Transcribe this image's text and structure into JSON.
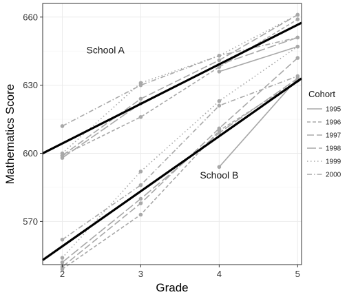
{
  "chart_data": {
    "type": "line",
    "xlabel": "Grade",
    "ylabel": "Mathematics Score",
    "x_ticks": [
      2,
      3,
      4,
      5
    ],
    "y_ticks": [
      570,
      600,
      630,
      660
    ],
    "xlim": [
      1.75,
      5.05
    ],
    "ylim": [
      551,
      666
    ],
    "grid": true,
    "legend": {
      "title": "Cohort",
      "placement": "right"
    },
    "annotations": [
      {
        "text": "School A",
        "x": 2.55,
        "y": 644
      },
      {
        "text": "School B",
        "x": 4.0,
        "y": 589
      }
    ],
    "series_color": "#a8a8a8",
    "trend_color": "#000000",
    "series": [
      {
        "name": "1995",
        "dash": "solid",
        "school": "A",
        "x": [
          4,
          5
        ],
        "y": [
          636,
          647
        ]
      },
      {
        "name": "1996",
        "dash": "dash",
        "school": "A",
        "x": [
          2,
          3,
          4,
          5
        ],
        "y": [
          599,
          616,
          638,
          659
        ]
      },
      {
        "name": "1997",
        "dash": "longdash",
        "school": "A",
        "x": [
          2,
          3,
          4,
          5
        ],
        "y": [
          599,
          624,
          641,
          661
        ]
      },
      {
        "name": "1998",
        "dash": "longdash2",
        "school": "A",
        "x": [
          2,
          3,
          4,
          5
        ],
        "y": [
          598,
          622,
          639,
          651
        ]
      },
      {
        "name": "1999",
        "dash": "dotted",
        "school": "A",
        "x": [
          2,
          3,
          4,
          5
        ],
        "y": [
          600,
          631,
          643,
          661
        ]
      },
      {
        "name": "2000",
        "dash": "dotdash",
        "school": "A",
        "x": [
          2,
          3,
          4,
          5
        ],
        "y": [
          612,
          630,
          643,
          651
        ]
      },
      {
        "name": "1995",
        "dash": "solid",
        "school": "B",
        "x": [
          4,
          5
        ],
        "y": [
          594,
          633
        ]
      },
      {
        "name": "1996",
        "dash": "dash",
        "school": "B",
        "x": [
          2,
          3,
          4,
          5
        ],
        "y": [
          549,
          573,
          610,
          632
        ]
      },
      {
        "name": "1997",
        "dash": "longdash",
        "school": "B",
        "x": [
          2,
          3,
          4,
          5
        ],
        "y": [
          550,
          578,
          611,
          642
        ]
      },
      {
        "name": "1998",
        "dash": "longdash2",
        "school": "B",
        "x": [
          2,
          3,
          4,
          5
        ],
        "y": [
          552,
          580,
          609,
          633
        ]
      },
      {
        "name": "1999",
        "dash": "dotted",
        "school": "B",
        "x": [
          2,
          3,
          4,
          5
        ],
        "y": [
          554,
          592,
          623,
          647
        ]
      },
      {
        "name": "2000",
        "dash": "dotdash",
        "school": "B",
        "x": [
          2,
          3,
          4,
          5
        ],
        "y": [
          562,
          586,
          621,
          634
        ]
      }
    ],
    "trend_lines": [
      {
        "school": "A",
        "x": [
          1.75,
          5.05
        ],
        "y": [
          600,
          657.5
        ]
      },
      {
        "school": "B",
        "x": [
          1.75,
          5.05
        ],
        "y": [
          553,
          633
        ]
      }
    ],
    "legend_entries": [
      "1995",
      "1996",
      "1997",
      "1998",
      "1999",
      "2000"
    ]
  }
}
